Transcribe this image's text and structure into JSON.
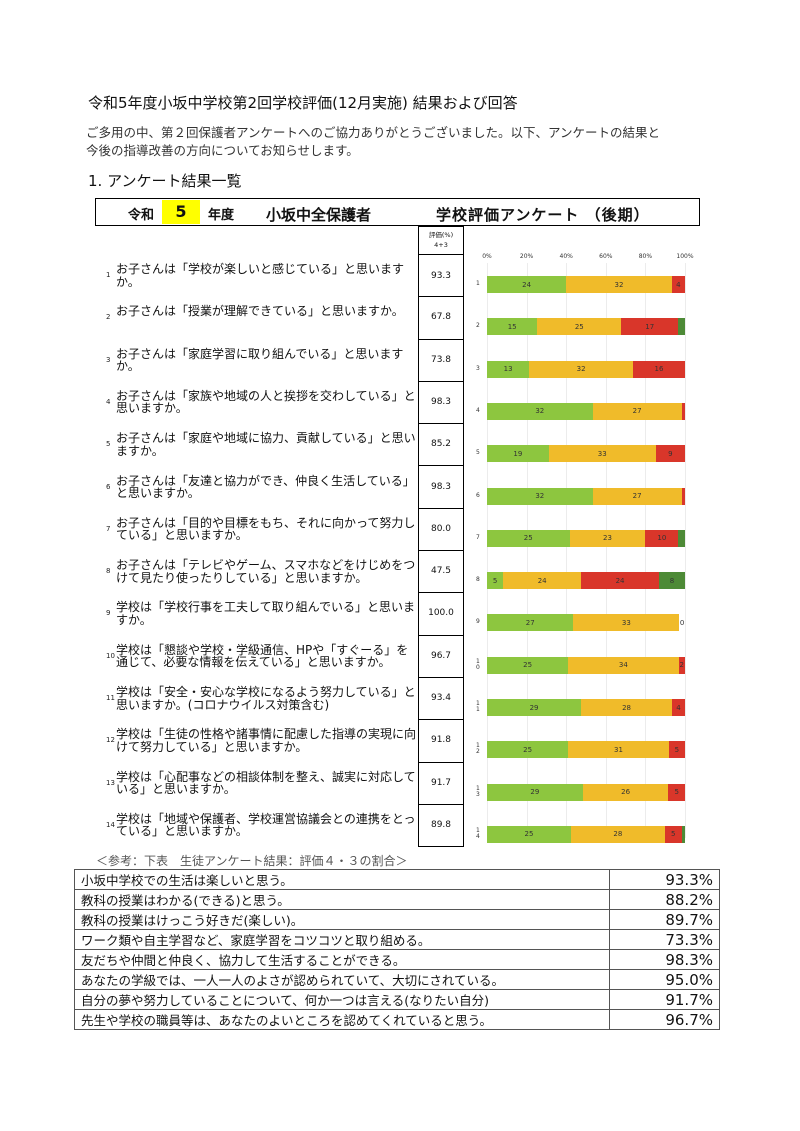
{
  "document": {
    "title": "令和5年度小坂中学校第2回学校評価(12月実施) 結果および回答",
    "intro_lines": [
      "ご多用の中、第２回保護者アンケートへのご協力ありがとうございました。以下、アンケートの結果と",
      "今後の指導改善の方向についてお知らせします。"
    ],
    "section_heading": "1. アンケート結果一覧"
  },
  "survey_header": {
    "reiwa": "令和",
    "year": "5",
    "nendo": "年度",
    "target": "小坂中全保護者",
    "survey_title": "学校評価アンケート （後期）"
  },
  "score_header": {
    "line1": "評価(%)",
    "line2": "4+3"
  },
  "colors": {
    "rating4": "#8dc63f",
    "rating3": "#f0bb2a",
    "rating2": "#d9362a",
    "rating1": "#4d8a36"
  },
  "chart_data": {
    "type": "bar",
    "orientation": "horizontal-stacked-100",
    "x_ticks": [
      "0%",
      "20%",
      "40%",
      "60%",
      "80%",
      "100%"
    ],
    "xlim": [
      0,
      100
    ],
    "rows": [
      {
        "index": "1",
        "number": "1",
        "question": "お子さんは「学校が楽しいと感じている」と思いますか。",
        "score": "93.3",
        "segments": [
          24,
          32,
          4,
          0
        ],
        "labels": [
          "24",
          "32",
          "4",
          ""
        ]
      },
      {
        "index": "2",
        "number": "2",
        "question": "お子さんは「授業が理解できている」と思いますか。",
        "score": "67.8",
        "segments": [
          15,
          25,
          17,
          2
        ],
        "labels": [
          "15",
          "25",
          "17",
          ""
        ]
      },
      {
        "index": "3",
        "number": "3",
        "question": "お子さんは「家庭学習に取り組んでいる」と思いますか。",
        "score": "73.8",
        "segments": [
          13,
          32,
          16,
          0
        ],
        "labels": [
          "13",
          "32",
          "16",
          ""
        ]
      },
      {
        "index": "4",
        "number": "4",
        "question": "お子さんは「家族や地域の人と挨拶を交わしている」と思いますか。",
        "score": "98.3",
        "segments": [
          32,
          27,
          1,
          0
        ],
        "labels": [
          "32",
          "27",
          "",
          ""
        ]
      },
      {
        "index": "5",
        "number": "5",
        "question": "お子さんは「家庭や地域に協力、貢献している」と思いますか。",
        "score": "85.2",
        "segments": [
          19,
          33,
          9,
          0
        ],
        "labels": [
          "19",
          "33",
          "9",
          ""
        ]
      },
      {
        "index": "6",
        "number": "6",
        "question": "お子さんは「友達と協力ができ、仲良く生活している」と思いますか。",
        "score": "98.3",
        "segments": [
          32,
          27,
          1,
          0
        ],
        "labels": [
          "32",
          "27",
          "",
          ""
        ]
      },
      {
        "index": "7",
        "number": "7",
        "question": "お子さんは「目的や目標をもち、それに向かって努力している」と思いますか。",
        "score": "80.0",
        "segments": [
          25,
          23,
          10,
          2
        ],
        "labels": [
          "25",
          "23",
          "10",
          ""
        ]
      },
      {
        "index": "8",
        "number": "8",
        "question": "お子さんは「テレビやゲーム、スマホなどをけじめをつけて見たり使ったりしている」と思いますか。",
        "score": "47.5",
        "segments": [
          5,
          24,
          24,
          8
        ],
        "labels": [
          "5",
          "24",
          "24",
          "8"
        ]
      },
      {
        "index": "9",
        "number": "9",
        "question": "学校は「学校行事を工夫して取り組んでいる」と思いますか。",
        "score": "100.0",
        "segments": [
          27,
          33,
          0,
          0
        ],
        "labels": [
          "27",
          "33",
          "0",
          ""
        ]
      },
      {
        "index": "1\n0",
        "number": "10",
        "question": "学校は「懇談や学校・学級通信、HPや「すぐーる」を通じて、必要な情報を伝えている」と思いますか。",
        "score": "96.7",
        "segments": [
          25,
          34,
          2,
          0
        ],
        "labels": [
          "25",
          "34",
          "2",
          ""
        ]
      },
      {
        "index": "1\n1",
        "number": "11",
        "question": "学校は「安全・安心な学校になるよう努力している」と思いますか。(コロナウイルス対策含む)",
        "score": "93.4",
        "segments": [
          29,
          28,
          4,
          0
        ],
        "labels": [
          "29",
          "28",
          "4",
          ""
        ]
      },
      {
        "index": "1\n2",
        "number": "12",
        "question": "学校は「生徒の性格や諸事情に配慮した指導の実現に向けて努力している」と思いますか。",
        "score": "91.8",
        "segments": [
          25,
          31,
          5,
          0
        ],
        "labels": [
          "25",
          "31",
          "5",
          ""
        ]
      },
      {
        "index": "1\n3",
        "number": "13",
        "question": "学校は「心配事などの相談体制を整え、誠実に対応している」と思いますか。",
        "score": "91.7",
        "segments": [
          29,
          26,
          5,
          0
        ],
        "labels": [
          "29",
          "26",
          "5",
          ""
        ]
      },
      {
        "index": "1\n4",
        "number": "14",
        "question": "学校は「地域や保護者、学校運営協議会との連携をとっている」と思いますか。",
        "score": "89.8",
        "segments": [
          25,
          28,
          5,
          1
        ],
        "labels": [
          "25",
          "28",
          "5",
          ""
        ]
      }
    ]
  },
  "reference": {
    "caption": "＜参考：下表　生徒アンケート結果：評価４・３の割合＞",
    "rows": [
      {
        "label": "小坂中学校での生活は楽しいと思う。",
        "value": "93.3%"
      },
      {
        "label": "教科の授業はわかる(できる)と思う。",
        "value": "88.2%"
      },
      {
        "label": "教科の授業はけっこう好きだ(楽しい)。",
        "value": "89.7%"
      },
      {
        "label": "ワーク類や自主学習など、家庭学習をコツコツと取り組める。",
        "value": "73.3%"
      },
      {
        "label": "友だちや仲間と仲良く、協力して生活することができる。",
        "value": "98.3%"
      },
      {
        "label": "あなたの学級では、一人一人のよさが認められていて、大切にされている。",
        "value": "95.0%"
      },
      {
        "label": "自分の夢や努力していることについて、何か一つは言える(なりたい自分)",
        "value": "91.7%"
      },
      {
        "label": "先生や学校の職員等は、あなたのよいところを認めてくれていると思う。",
        "value": "96.7%"
      }
    ]
  }
}
